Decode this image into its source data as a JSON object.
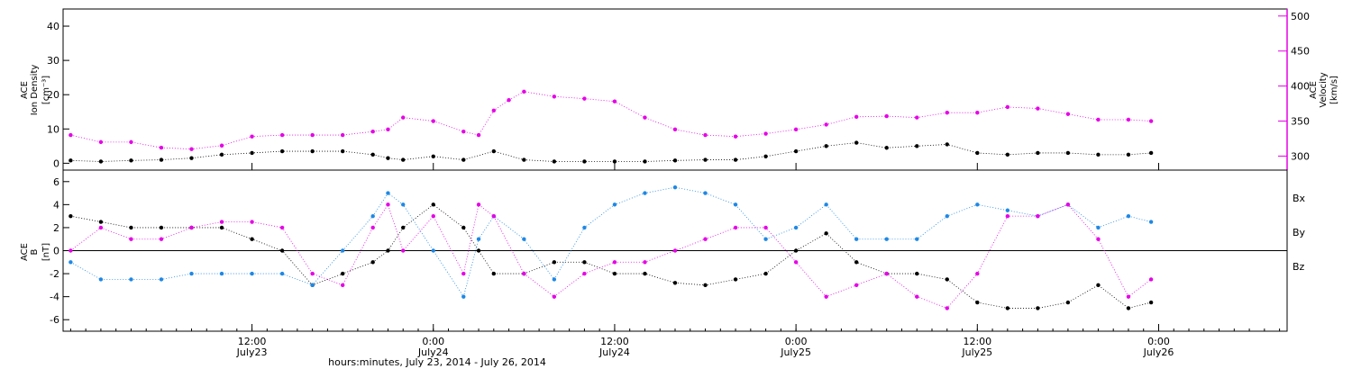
{
  "chart_data": [
    {
      "type": "scatter",
      "panel": "top",
      "ylabel_left": [
        "ACE",
        "Ion Density",
        "[cm⁻³]"
      ],
      "ylabel_right": [
        "ACE",
        "Velocity",
        "[km/s]"
      ],
      "ylim_left": [
        -2,
        45
      ],
      "yticks_left": [
        0,
        10,
        20,
        30,
        40
      ],
      "ylim_right": [
        280,
        510
      ],
      "yticks_right": [
        300,
        350,
        400,
        450,
        500
      ],
      "right_axis_color": "#e600e6",
      "x_range_hours": [
        0,
        72
      ],
      "series": [
        {
          "name": "",
          "axis": "left",
          "color": "#000000",
          "x": [
            0,
            2,
            4,
            6,
            8,
            10,
            12,
            14,
            16,
            18,
            20,
            21,
            22,
            24,
            26,
            28,
            30,
            32,
            34,
            36,
            38,
            40,
            42,
            44,
            46,
            48,
            50,
            52,
            54,
            56,
            58,
            60,
            62,
            64,
            66,
            68,
            70,
            71.5
          ],
          "y": [
            0.8,
            0.5,
            0.8,
            1.0,
            1.5,
            2.5,
            3.0,
            3.5,
            3.5,
            3.5,
            2.5,
            1.5,
            1.0,
            2.0,
            1.0,
            3.5,
            1.0,
            0.5,
            0.5,
            0.5,
            0.5,
            0.8,
            1.0,
            1.0,
            2.0,
            3.5,
            5.0,
            6.0,
            4.5,
            5.0,
            5.5,
            3.0,
            2.5,
            3.0,
            3.0,
            2.5,
            2.5,
            3.0
          ]
        },
        {
          "name": "",
          "axis": "right",
          "color": "#e600e6",
          "x": [
            0,
            2,
            4,
            6,
            8,
            10,
            12,
            14,
            16,
            18,
            20,
            21,
            22,
            24,
            26,
            27,
            28,
            29,
            30,
            32,
            34,
            36,
            38,
            40,
            42,
            44,
            46,
            48,
            50,
            52,
            54,
            56,
            58,
            60,
            62,
            64,
            66,
            68,
            70,
            71.5
          ],
          "y": [
            330,
            320,
            320,
            312,
            310,
            315,
            328,
            330,
            330,
            330,
            335,
            338,
            355,
            350,
            335,
            330,
            365,
            380,
            392,
            385,
            382,
            378,
            355,
            338,
            330,
            328,
            332,
            338,
            345,
            356,
            357,
            355,
            362,
            362,
            370,
            368,
            360,
            352,
            352,
            350
          ]
        }
      ]
    },
    {
      "type": "scatter",
      "panel": "bottom",
      "ylabel_left": [
        "ACE",
        "B",
        "[nT]"
      ],
      "ylim": [
        -7,
        7
      ],
      "yticks": [
        -6,
        -4,
        -2,
        0,
        2,
        4,
        6
      ],
      "zero_line": true,
      "x_range_hours": [
        0,
        72
      ],
      "legend_position": "right",
      "series": [
        {
          "name": "Bx",
          "color": "#000000",
          "x": [
            0,
            2,
            4,
            6,
            8,
            10,
            12,
            14,
            16,
            18,
            20,
            21,
            22,
            24,
            26,
            27,
            28,
            30,
            32,
            34,
            36,
            38,
            40,
            42,
            44,
            46,
            48,
            50,
            52,
            54,
            56,
            58,
            60,
            62,
            64,
            66,
            68,
            70,
            71.5
          ],
          "y": [
            3,
            2.5,
            2,
            2,
            2,
            2,
            1,
            0,
            -3,
            -2,
            -1,
            0,
            2,
            4,
            2,
            0,
            -2,
            -2,
            -1,
            -1,
            -2,
            -2,
            -2.8,
            -3,
            -2.5,
            -2,
            0,
            1.5,
            -1,
            -2,
            -2,
            -2.5,
            -4.5,
            -5,
            -5,
            -4.5,
            -3,
            -5,
            -4.5
          ]
        },
        {
          "name": "By",
          "color": "#1e88e5",
          "x": [
            0,
            2,
            4,
            6,
            8,
            10,
            12,
            14,
            16,
            18,
            20,
            21,
            22,
            24,
            26,
            27,
            28,
            30,
            32,
            34,
            36,
            38,
            40,
            42,
            44,
            46,
            48,
            50,
            52,
            54,
            56,
            58,
            60,
            62,
            64,
            66,
            68,
            70,
            71.5
          ],
          "y": [
            -1,
            -2.5,
            -2.5,
            -2.5,
            -2,
            -2,
            -2,
            -2,
            -3,
            0,
            3,
            5,
            4,
            0,
            -4,
            1,
            3,
            1,
            -2.5,
            2,
            4,
            5,
            5.5,
            5,
            4,
            1,
            2,
            4,
            1,
            1,
            1,
            3,
            4,
            3.5,
            3,
            4,
            2,
            3,
            2.5
          ]
        },
        {
          "name": "Bz",
          "color": "#e600e6",
          "x": [
            0,
            2,
            4,
            6,
            8,
            10,
            12,
            14,
            16,
            18,
            20,
            21,
            22,
            24,
            26,
            27,
            28,
            30,
            32,
            34,
            36,
            38,
            40,
            42,
            44,
            46,
            48,
            50,
            52,
            54,
            56,
            58,
            60,
            62,
            64,
            66,
            68,
            70,
            71.5
          ],
          "y": [
            0,
            2,
            1,
            1,
            2,
            2.5,
            2.5,
            2,
            -2,
            -3,
            2,
            4,
            0,
            3,
            -2,
            4,
            3,
            -2,
            -4,
            -2,
            -1,
            -1,
            0,
            1,
            2,
            2,
            -1,
            -4,
            -3,
            -2,
            -4,
            -5,
            -2,
            3,
            3,
            4,
            1,
            -4,
            -2.5
          ]
        }
      ]
    }
  ],
  "x_axis": {
    "ticks": [
      {
        "hours": 12,
        "time": "12:00",
        "date": "July23"
      },
      {
        "hours": 24,
        "time": "0:00",
        "date": "July24"
      },
      {
        "hours": 36,
        "time": "12:00",
        "date": "July24"
      },
      {
        "hours": 48,
        "time": "0:00",
        "date": "July25"
      },
      {
        "hours": 60,
        "time": "12:00",
        "date": "July25"
      },
      {
        "hours": 72,
        "time": "0:00",
        "date": "July26"
      }
    ],
    "title": "hours:minutes, July 23, 2014 - July 26, 2014"
  },
  "colors": {
    "black": "#000000",
    "magenta": "#e600e6",
    "blue": "#1e88e5"
  }
}
